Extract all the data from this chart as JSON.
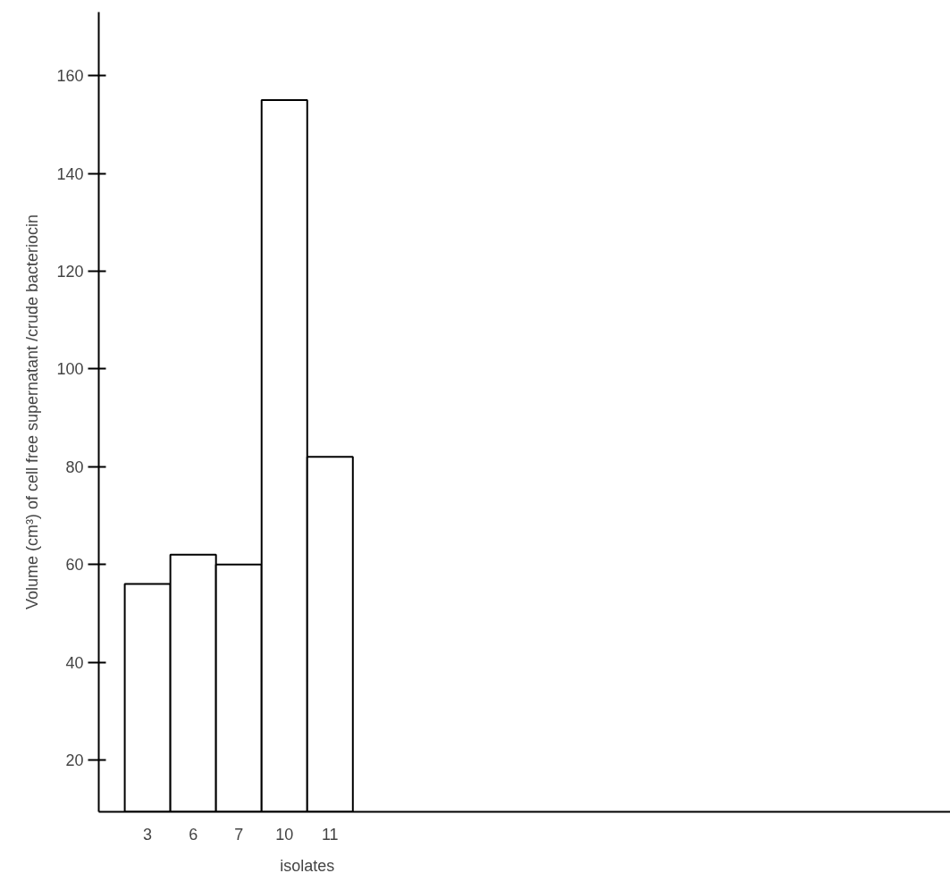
{
  "chart_data": {
    "type": "bar",
    "xlabel": "isolates",
    "ylabel": "Volume (cm³) of cell free supernatant /crude bacteriocin",
    "categories": [
      "3",
      "6",
      "7",
      "10",
      "11"
    ],
    "values": [
      56,
      62,
      60,
      155,
      82
    ],
    "color": "#ffffff",
    "ylim": [
      9.4,
      173
    ],
    "yticks": [
      20,
      40,
      60,
      80,
      100,
      120,
      140,
      160
    ],
    "grid": false
  }
}
